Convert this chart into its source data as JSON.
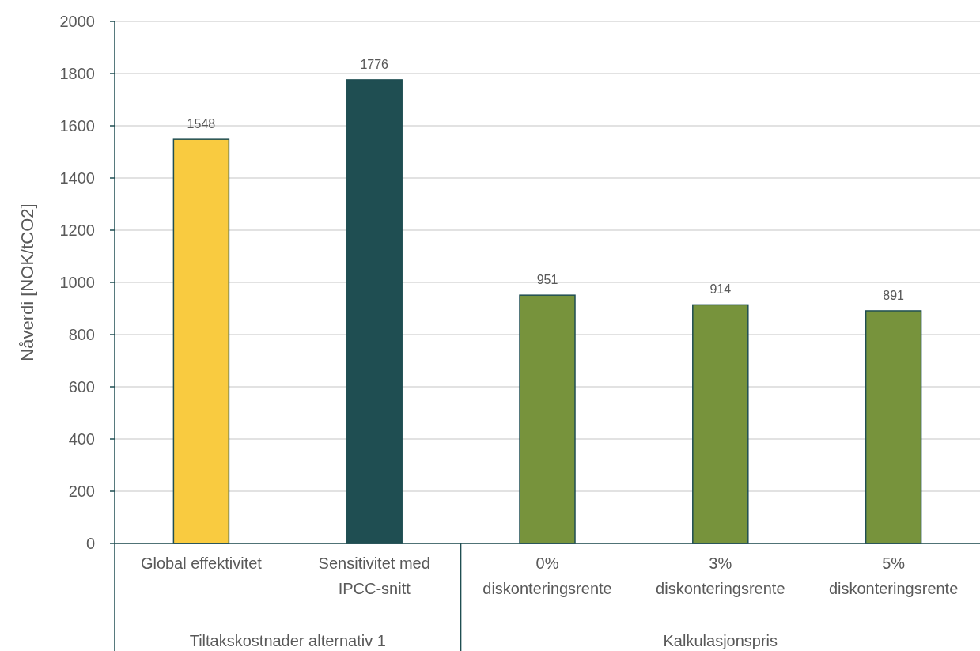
{
  "chart_data": {
    "type": "bar",
    "ylabel": "Nåverdi [NOK/tCO2]",
    "categories": [
      "Global effektivitet",
      "Sensitivitet med IPCC-snitt",
      "0% diskonteringsrente",
      "3% diskonteringsrente",
      "5% diskonteringsrente"
    ],
    "values": [
      1548,
      1776,
      951,
      914,
      891
    ],
    "colors": [
      "#f9cb40",
      "#1f4e52",
      "#77933c",
      "#77933c",
      "#77933c"
    ],
    "ylim": [
      0,
      2000
    ],
    "yticks": [
      0,
      200,
      400,
      600,
      800,
      1000,
      1200,
      1400,
      1600,
      1800,
      2000
    ],
    "grid": "y",
    "data_labels": true,
    "annotations": [
      "Tiltakskostnader alternativ 1",
      "Kalkulasjonspris"
    ]
  }
}
